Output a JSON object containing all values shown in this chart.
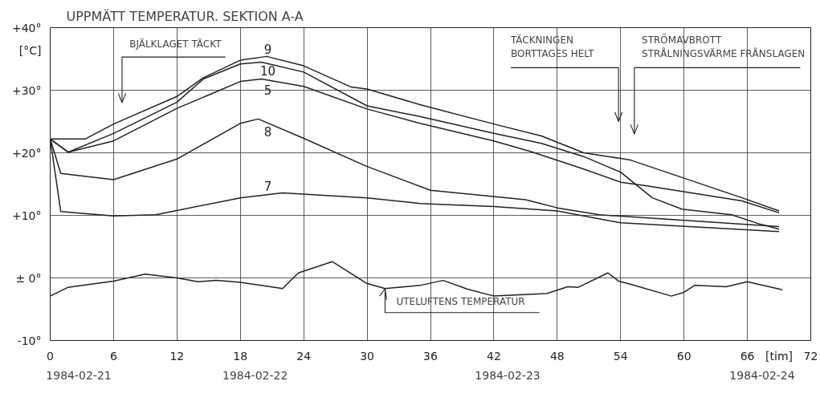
{
  "chart_data": {
    "type": "line",
    "title": "UPPMÄTT TEMPERATUR. SEKTION A-A",
    "xlabel": "[tim]",
    "ylabel": "[°C]",
    "xlim": [
      0,
      72
    ],
    "xticks": [
      0,
      6,
      12,
      18,
      24,
      30,
      36,
      42,
      48,
      54,
      60,
      66,
      72
    ],
    "ylim": [
      -10,
      40
    ],
    "yticks": [
      {
        "value": 40,
        "label": "+40°"
      },
      {
        "value": 30,
        "label": "+30°"
      },
      {
        "value": 20,
        "label": "+20°"
      },
      {
        "value": 10,
        "label": "+10°"
      },
      {
        "value": 0,
        "label": "± 0°"
      },
      {
        "value": -10,
        "label": "-10°"
      }
    ],
    "grid": true,
    "line_style": "solid",
    "marker": "none",
    "series": [
      {
        "name": "9",
        "color": "#222222",
        "x": [
          0,
          3.3,
          6,
          12,
          14.5,
          18,
          20.5,
          24,
          28.5,
          30,
          35,
          42,
          46.5,
          50.5,
          54,
          55,
          65.5,
          69
        ],
        "values": [
          22.2,
          22.2,
          24.6,
          29,
          32,
          34.8,
          35.4,
          33.9,
          30.5,
          30.2,
          27.7,
          24.6,
          22.7,
          20,
          19.1,
          18.8,
          12.8,
          10.7
        ]
      },
      {
        "name": "10",
        "color": "#222222",
        "x": [
          0,
          1.7,
          6,
          12,
          14.5,
          18,
          20,
          24,
          30,
          35,
          42,
          46.5,
          50.5,
          54,
          57,
          59.8,
          64.5,
          67,
          69
        ],
        "values": [
          22.2,
          20.1,
          23.1,
          28.1,
          31.8,
          34.2,
          34.5,
          32.9,
          27.5,
          25.8,
          23.1,
          21.5,
          19.4,
          16.9,
          12.8,
          11,
          10.1,
          8.7,
          7.8
        ]
      },
      {
        "name": "5",
        "color": "#222222",
        "x": [
          0,
          1.7,
          6,
          12,
          18,
          20,
          24,
          30,
          35,
          42,
          45.5,
          50.5,
          54,
          56.5,
          65.5,
          69
        ],
        "values": [
          22.2,
          20.1,
          21.9,
          27.1,
          31.4,
          31.8,
          30.6,
          27,
          24.7,
          21.9,
          20.2,
          17.4,
          15.3,
          14.7,
          12.3,
          10.4
        ]
      },
      {
        "name": "8",
        "color": "#222222",
        "x": [
          0,
          1,
          6,
          12,
          18,
          19.7,
          24,
          30,
          36,
          45,
          48,
          52,
          69
        ],
        "values": [
          22.2,
          16.7,
          15.7,
          19,
          24.7,
          25.4,
          22.3,
          17.8,
          14,
          12.5,
          11.2,
          10.1,
          8.2
        ]
      },
      {
        "name": "7",
        "color": "#222222",
        "x": [
          0,
          1,
          6,
          10,
          18,
          22,
          30,
          35,
          42,
          48,
          54,
          69
        ],
        "values": [
          22.2,
          10.6,
          9.9,
          10.1,
          12.8,
          13.6,
          12.8,
          11.9,
          11.4,
          10.7,
          8.8,
          7.4
        ]
      },
      {
        "color": "#222222",
        "x": [
          0,
          1.7,
          6,
          9,
          12,
          14,
          15.7,
          18,
          22,
          23.5,
          26.7,
          30,
          31.7,
          35,
          37.2,
          39.5,
          42,
          47,
          49,
          50,
          52.8,
          53.8,
          54.7,
          58.8,
          60,
          61,
          64,
          66,
          69.3
        ],
        "values": [
          -2.9,
          -1.5,
          -0.5,
          0.6,
          0,
          -0.6,
          -0.4,
          -0.7,
          -1.7,
          0.8,
          2.6,
          -0.9,
          -1.7,
          -1.2,
          -0.4,
          -1.8,
          -2.9,
          -2.5,
          -1.4,
          -1.5,
          0.8,
          -0.5,
          -0.9,
          -2.9,
          -2.3,
          -1.2,
          -1.4,
          -0.6,
          -1.9
        ]
      }
    ],
    "annotations": [
      "BJÄLKLAGET TÄCKT",
      "TÄCKNINGEN\nBORTTAGES HELT",
      "STRÖMAVBROTT\nSTRÅLNINGSVÄRME FRÅNSLAGEN",
      {
        "text": "UTELUFTENS TEMPERATUR",
        "x": 31.7,
        "y": -1.7
      },
      "1984-02-21",
      "1984-02-22",
      "1984-02-23",
      "1984-02-24"
    ]
  }
}
